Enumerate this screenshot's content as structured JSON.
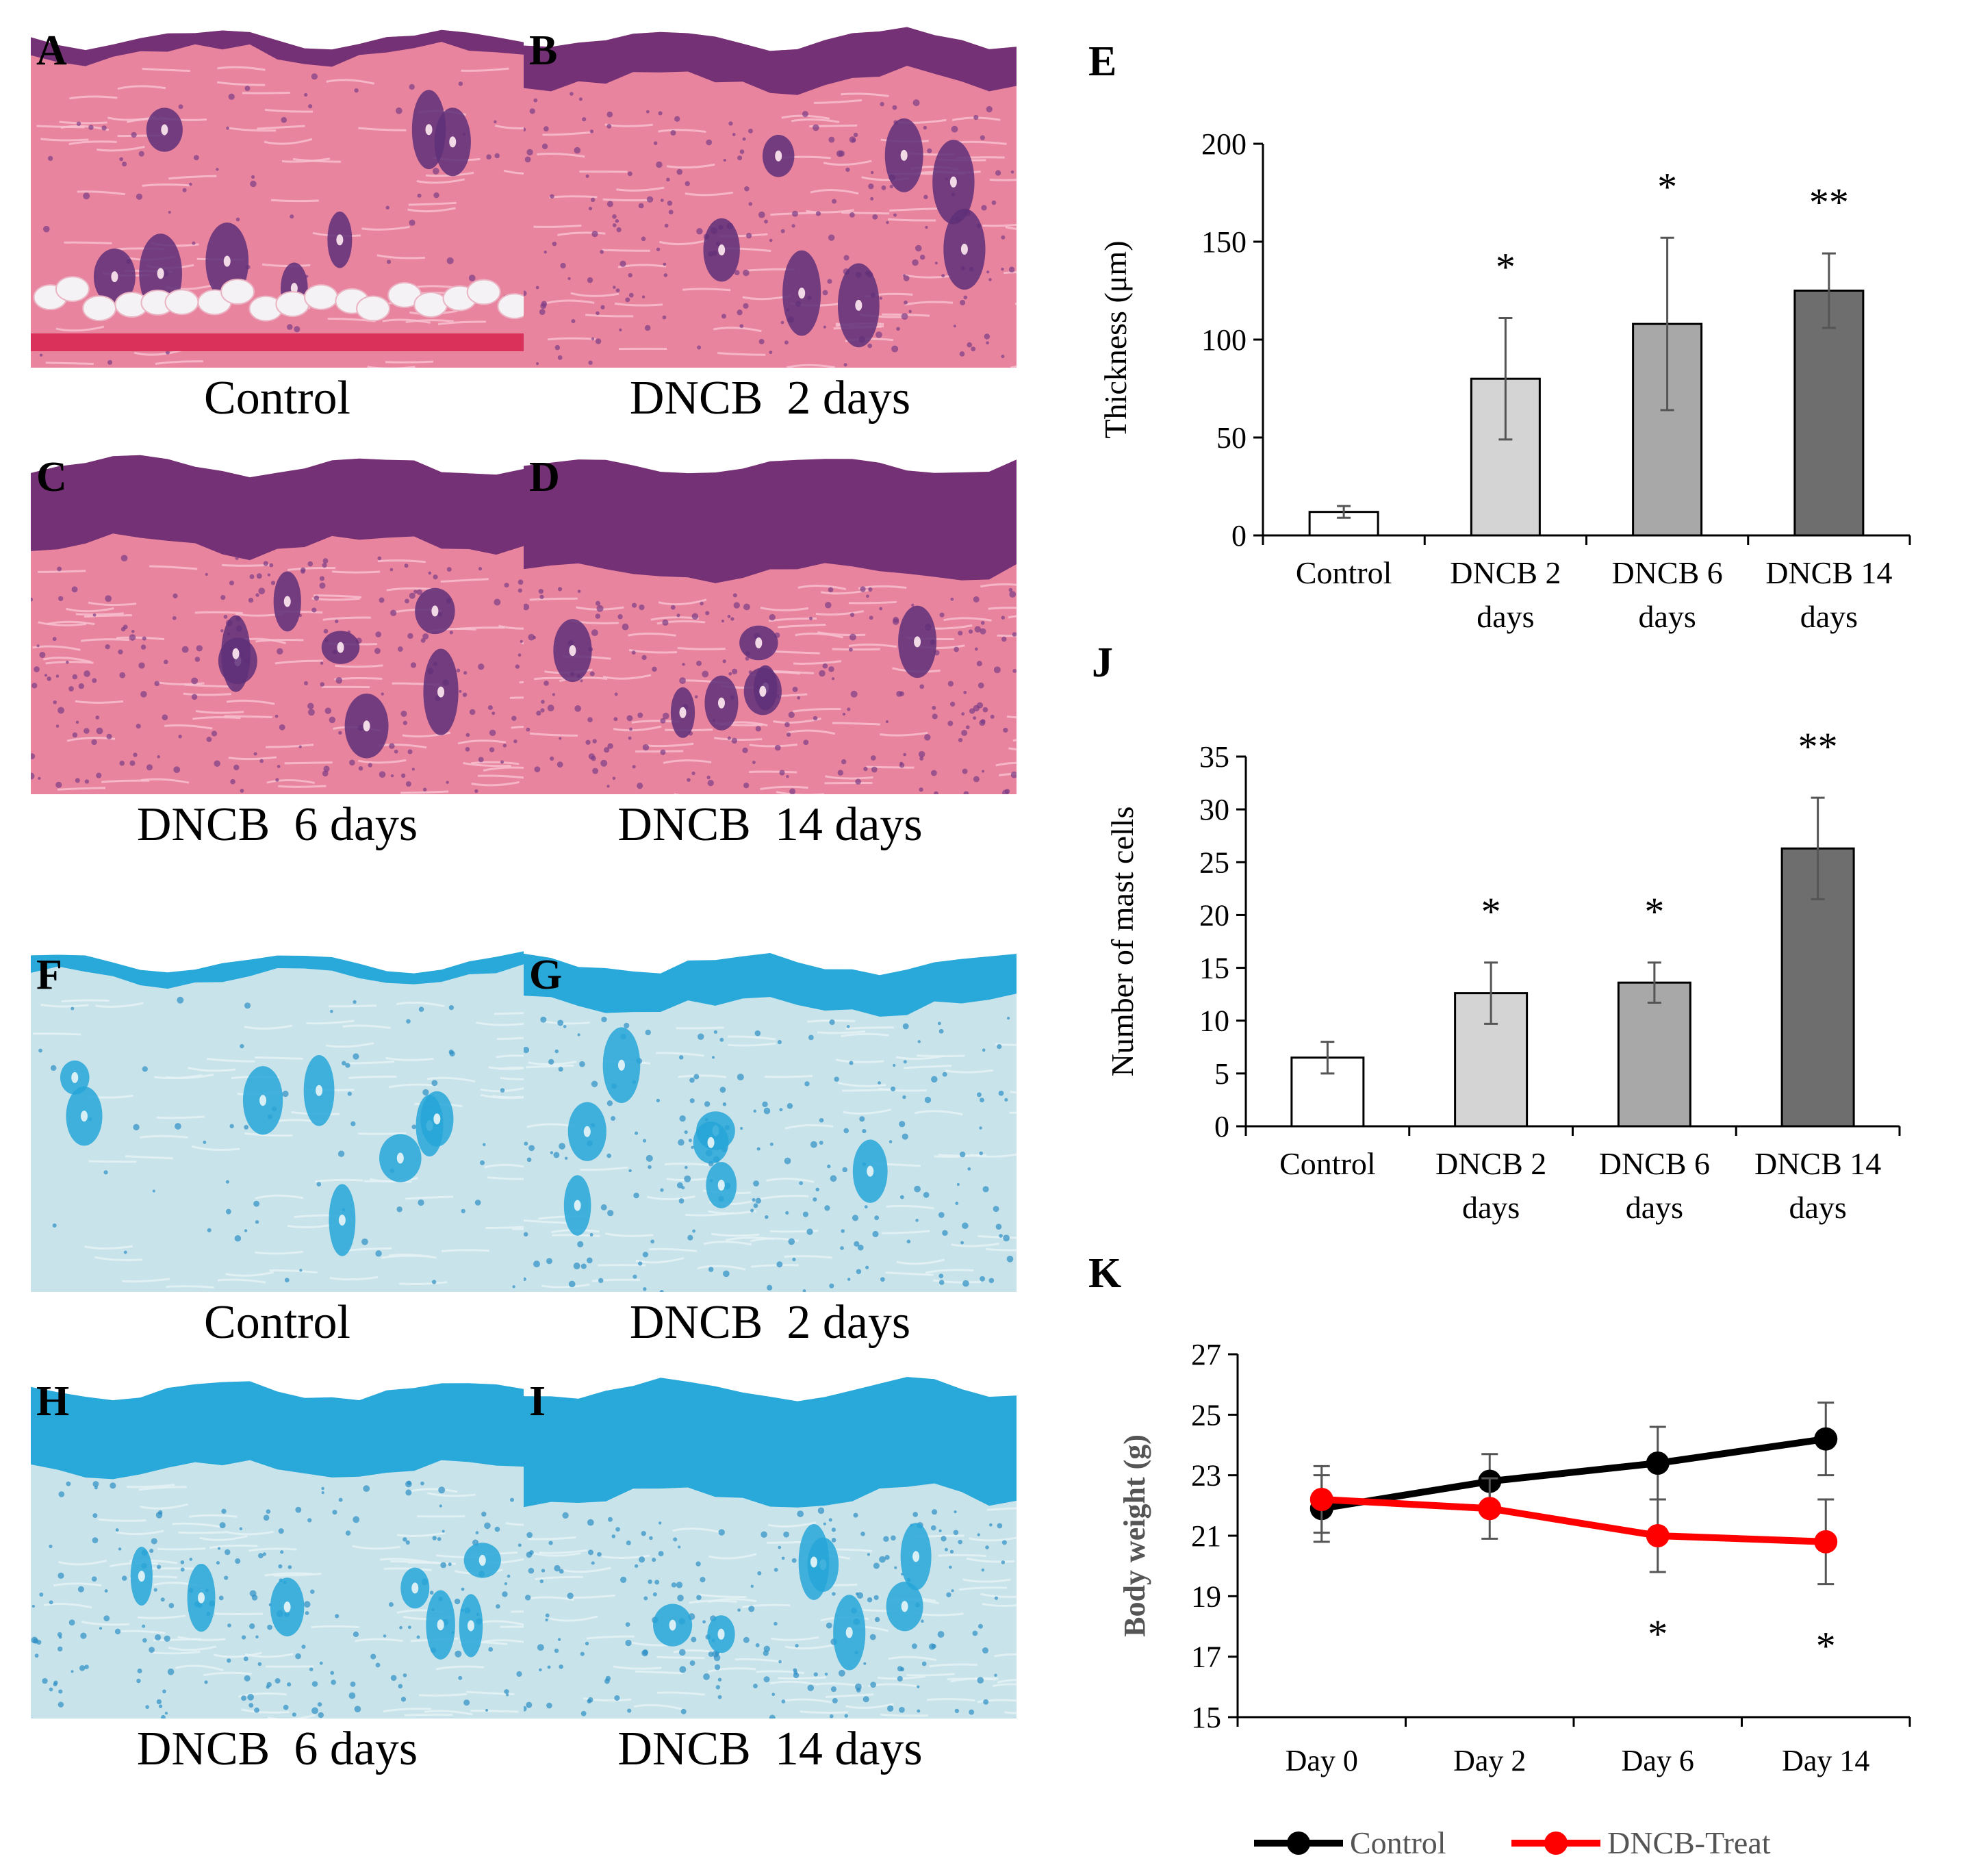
{
  "panels": [
    {
      "letter": "A",
      "caption": "Control",
      "stain": "he",
      "variant": "control",
      "row": 0,
      "col": 0
    },
    {
      "letter": "B",
      "caption": "DNCB  2 days",
      "stain": "he",
      "variant": "d2",
      "row": 0,
      "col": 1
    },
    {
      "letter": "C",
      "caption": "DNCB  6 days",
      "stain": "he",
      "variant": "d6",
      "row": 1,
      "col": 0
    },
    {
      "letter": "D",
      "caption": "DNCB  14 days",
      "stain": "he",
      "variant": "d14",
      "row": 1,
      "col": 1
    },
    {
      "letter": "F",
      "caption": "Control",
      "stain": "tb",
      "variant": "control",
      "row": 2,
      "col": 0
    },
    {
      "letter": "G",
      "caption": "DNCB  2 days",
      "stain": "tb",
      "variant": "d2",
      "row": 2,
      "col": 1
    },
    {
      "letter": "H",
      "caption": "DNCB  6 days",
      "stain": "tb",
      "variant": "d6",
      "row": 3,
      "col": 0
    },
    {
      "letter": "I",
      "caption": "DNCB  14 days",
      "stain": "tb",
      "variant": "d14",
      "row": 3,
      "col": 1
    }
  ],
  "colors": {
    "he_dermis": "#e9849f",
    "he_epidermis": "#6a2a72",
    "he_nuclei": "#7a3d86",
    "he_fat": "#f4f2f5",
    "tb_background": "#c9e3ea",
    "tb_epidermis": "#1ba3d8",
    "tb_nuclei": "#2c8fc4",
    "bar_control": "#ffffff",
    "bar_d2": "#d4d4d4",
    "bar_d6": "#a8a8a8",
    "bar_d14": "#6e6e6e",
    "line_control": "#000000",
    "line_dncb": "#ff0000",
    "axis": "#000000",
    "errorbar": "#555555",
    "ylabel_k": "#555555"
  },
  "chart_data": [
    {
      "id": "E",
      "type": "bar",
      "letter": "E",
      "categories": [
        "Control",
        "DNCB 2\ndays",
        "DNCB 6\ndays",
        "DNCB 14\ndays"
      ],
      "values": [
        12,
        80,
        108,
        125
      ],
      "errors": [
        3,
        31,
        44,
        19
      ],
      "annotations": [
        "",
        "*",
        "*",
        "**"
      ],
      "ylabel": "Thickness (μm)",
      "xlabel": "",
      "ylim": [
        0,
        200
      ],
      "yticks": [
        0,
        50,
        100,
        150,
        200
      ],
      "grid": false
    },
    {
      "id": "J",
      "type": "bar",
      "letter": "J",
      "categories": [
        "Control",
        "DNCB 2\ndays",
        "DNCB 6\ndays",
        "DNCB 14\ndays"
      ],
      "values": [
        6.5,
        12.6,
        13.6,
        26.3
      ],
      "errors": [
        1.5,
        2.9,
        1.9,
        4.8
      ],
      "annotations": [
        "",
        "*",
        "*",
        "**"
      ],
      "ylabel": "Number of mast cells",
      "xlabel": "",
      "ylim": [
        0,
        35
      ],
      "yticks": [
        0,
        5,
        10,
        15,
        20,
        25,
        30,
        35
      ],
      "grid": false
    },
    {
      "id": "K",
      "type": "line",
      "letter": "K",
      "x": [
        "Day 0",
        "Day 2",
        "Day 6",
        "Day 14"
      ],
      "series": [
        {
          "name": "Control",
          "values": [
            21.9,
            22.8,
            23.4,
            24.2
          ],
          "errors": [
            1.1,
            0.9,
            1.2,
            1.2
          ]
        },
        {
          "name": "DNCB-Treat",
          "values": [
            22.2,
            21.9,
            21.0,
            20.8
          ],
          "errors": [
            1.1,
            1.0,
            1.2,
            1.4
          ]
        }
      ],
      "annotations": [
        "",
        "",
        "*",
        "*"
      ],
      "ylabel": "Body weight (g)",
      "xlabel": "",
      "ylim": [
        15,
        27
      ],
      "yticks": [
        15,
        17,
        19,
        21,
        23,
        25,
        27
      ],
      "legend": "bottom",
      "grid": false
    }
  ]
}
